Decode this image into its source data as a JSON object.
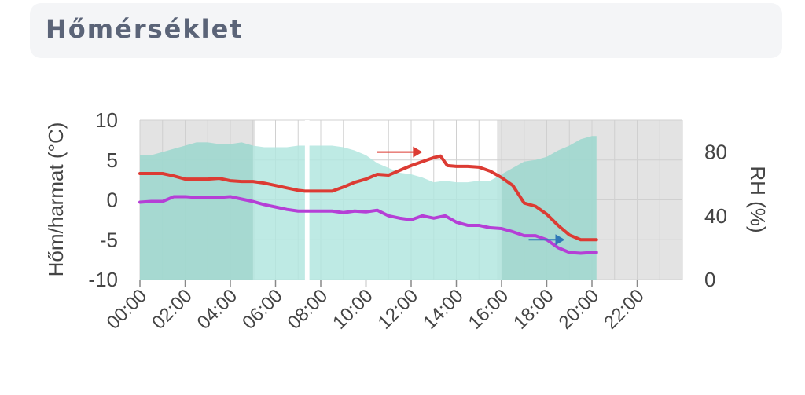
{
  "header": {
    "title": "Hőmérséklet"
  },
  "colors": {
    "temperature": "#dc3b33",
    "dewpoint": "#b53fd6",
    "humidity_fill": "#b3e6df",
    "night_shade": "#e3e3e3",
    "arrow_red": "#dc3b33",
    "arrow_blue": "#2f78b8",
    "gap": "#ffffff"
  },
  "chart_data": {
    "type": "line",
    "ylabel_left": "Hőm/harmat (°C)",
    "ylabel_right": "RH (%)",
    "y_left_range": [
      -10,
      10
    ],
    "y_right_range": [
      0,
      100
    ],
    "y_left_ticks": [
      "10",
      "5",
      "0",
      "-5",
      "-10"
    ],
    "y_right_ticks": [
      "80",
      "40",
      "0"
    ],
    "x_range_hours": [
      0,
      24
    ],
    "x_ticks": [
      "00:00",
      "02:00",
      "04:00",
      "06:00",
      "08:00",
      "10:00",
      "12:00",
      "14:00",
      "16:00",
      "18:00",
      "20:00",
      "22:00"
    ],
    "grid": true,
    "night_shading_hours": [
      [
        0,
        5.1
      ],
      [
        15.8,
        24
      ]
    ],
    "data_gap_hours": [
      7.3,
      7.5
    ],
    "series": [
      {
        "name": "temperature",
        "axis": "left",
        "points": [
          [
            0,
            3.3
          ],
          [
            0.5,
            3.3
          ],
          [
            1,
            3.3
          ],
          [
            1.5,
            3.0
          ],
          [
            2,
            2.6
          ],
          [
            2.5,
            2.6
          ],
          [
            3,
            2.6
          ],
          [
            3.5,
            2.7
          ],
          [
            4,
            2.4
          ],
          [
            4.5,
            2.3
          ],
          [
            5,
            2.3
          ],
          [
            5.5,
            2.1
          ],
          [
            6,
            1.8
          ],
          [
            6.5,
            1.5
          ],
          [
            7,
            1.2
          ],
          [
            7.3,
            1.1
          ],
          [
            7.5,
            1.1
          ],
          [
            8,
            1.1
          ],
          [
            8.5,
            1.1
          ],
          [
            9,
            1.6
          ],
          [
            9.5,
            2.2
          ],
          [
            10,
            2.6
          ],
          [
            10.5,
            3.2
          ],
          [
            11,
            3.1
          ],
          [
            11.5,
            3.7
          ],
          [
            12,
            4.3
          ],
          [
            12.5,
            4.8
          ],
          [
            13,
            5.3
          ],
          [
            13.3,
            5.5
          ],
          [
            13.6,
            4.3
          ],
          [
            14,
            4.2
          ],
          [
            14.5,
            4.2
          ],
          [
            15,
            4.1
          ],
          [
            15.5,
            3.6
          ],
          [
            16,
            2.8
          ],
          [
            16.5,
            1.8
          ],
          [
            17,
            -0.4
          ],
          [
            17.5,
            -0.8
          ],
          [
            18,
            -1.8
          ],
          [
            18.5,
            -3.2
          ],
          [
            19,
            -4.4
          ],
          [
            19.5,
            -5.0
          ],
          [
            20,
            -5.0
          ],
          [
            20.2,
            -5.0
          ]
        ]
      },
      {
        "name": "dewpoint",
        "axis": "left",
        "points": [
          [
            0,
            -0.3
          ],
          [
            0.5,
            -0.2
          ],
          [
            1,
            -0.2
          ],
          [
            1.5,
            0.4
          ],
          [
            2,
            0.4
          ],
          [
            2.5,
            0.3
          ],
          [
            3,
            0.3
          ],
          [
            3.5,
            0.3
          ],
          [
            4,
            0.4
          ],
          [
            4.5,
            0.1
          ],
          [
            5,
            -0.2
          ],
          [
            5.5,
            -0.6
          ],
          [
            6,
            -0.9
          ],
          [
            6.5,
            -1.2
          ],
          [
            7,
            -1.4
          ],
          [
            7.3,
            -1.4
          ],
          [
            7.5,
            -1.4
          ],
          [
            8,
            -1.4
          ],
          [
            8.5,
            -1.4
          ],
          [
            9,
            -1.6
          ],
          [
            9.5,
            -1.4
          ],
          [
            10,
            -1.5
          ],
          [
            10.5,
            -1.3
          ],
          [
            11,
            -2.0
          ],
          [
            11.5,
            -2.3
          ],
          [
            12,
            -2.5
          ],
          [
            12.5,
            -2.0
          ],
          [
            13,
            -2.3
          ],
          [
            13.5,
            -2.0
          ],
          [
            14,
            -2.8
          ],
          [
            14.5,
            -3.2
          ],
          [
            15,
            -3.2
          ],
          [
            15.5,
            -3.5
          ],
          [
            16,
            -3.6
          ],
          [
            16.5,
            -4.0
          ],
          [
            17,
            -4.5
          ],
          [
            17.5,
            -4.5
          ],
          [
            18,
            -5.0
          ],
          [
            18.5,
            -6.0
          ],
          [
            19,
            -6.6
          ],
          [
            19.5,
            -6.7
          ],
          [
            20,
            -6.6
          ],
          [
            20.2,
            -6.6
          ]
        ]
      },
      {
        "name": "humidity",
        "axis": "right",
        "type": "area",
        "points": [
          [
            0,
            78
          ],
          [
            0.5,
            78
          ],
          [
            1,
            80
          ],
          [
            1.5,
            82
          ],
          [
            2,
            84
          ],
          [
            2.5,
            86
          ],
          [
            3,
            86
          ],
          [
            3.5,
            85
          ],
          [
            4,
            85
          ],
          [
            4.5,
            86
          ],
          [
            5,
            84
          ],
          [
            5.5,
            83
          ],
          [
            6,
            83
          ],
          [
            6.5,
            83
          ],
          [
            7,
            84
          ],
          [
            7.3,
            84
          ],
          [
            7.5,
            84
          ],
          [
            8,
            84
          ],
          [
            8.5,
            84
          ],
          [
            9,
            83
          ],
          [
            9.5,
            81
          ],
          [
            10,
            78
          ],
          [
            10.5,
            73
          ],
          [
            11,
            70
          ],
          [
            11.5,
            67
          ],
          [
            12,
            66
          ],
          [
            12.5,
            64
          ],
          [
            13,
            61
          ],
          [
            13.5,
            62
          ],
          [
            14,
            61
          ],
          [
            14.5,
            61
          ],
          [
            15,
            62
          ],
          [
            15.5,
            62
          ],
          [
            16,
            66
          ],
          [
            16.5,
            70
          ],
          [
            17,
            74
          ],
          [
            17.5,
            75
          ],
          [
            18,
            77
          ],
          [
            18.5,
            81
          ],
          [
            19,
            84
          ],
          [
            19.5,
            88
          ],
          [
            20,
            90
          ],
          [
            20.2,
            90
          ]
        ]
      }
    ],
    "annotations": [
      {
        "type": "arrow",
        "color": "red",
        "from": [
          10.5,
          6.0
        ],
        "to": [
          12.5,
          6.0
        ]
      },
      {
        "type": "arrow",
        "color": "blue",
        "from": [
          17.2,
          -5.0
        ],
        "to": [
          18.8,
          -5.0
        ]
      }
    ]
  }
}
